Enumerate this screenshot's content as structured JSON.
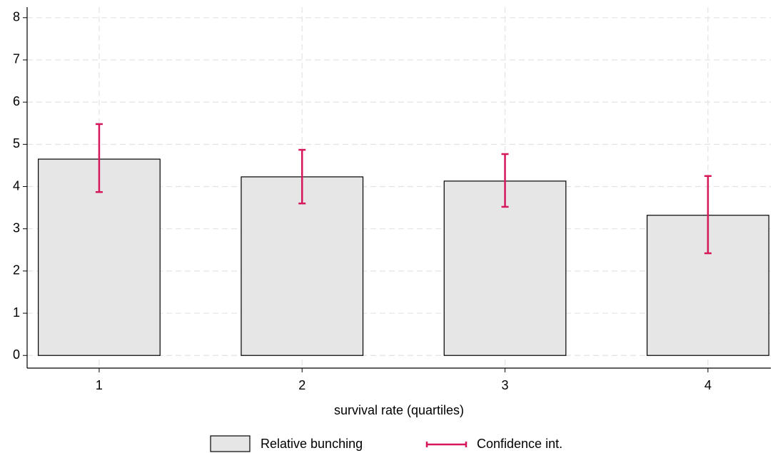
{
  "chart_data": {
    "type": "bar",
    "x_label": "survival rate (quartiles)",
    "x": [
      1,
      2,
      3,
      4
    ],
    "xlim": [
      0.645,
      4.31
    ],
    "xticks": [
      1,
      2,
      3,
      4
    ],
    "ylim": [
      -0.3,
      8.25
    ],
    "yticks": [
      0,
      1,
      2,
      3,
      4,
      5,
      6,
      7,
      8
    ],
    "grid": true,
    "series": [
      {
        "name": "Relative bunching",
        "color": "#e6e6e6",
        "values": [
          4.65,
          4.23,
          4.13,
          3.32
        ]
      },
      {
        "name": "Confidence int.",
        "color": "#d6175c",
        "low": [
          3.87,
          3.6,
          3.52,
          2.42
        ],
        "high": [
          5.48,
          4.87,
          4.77,
          4.25
        ]
      }
    ]
  }
}
